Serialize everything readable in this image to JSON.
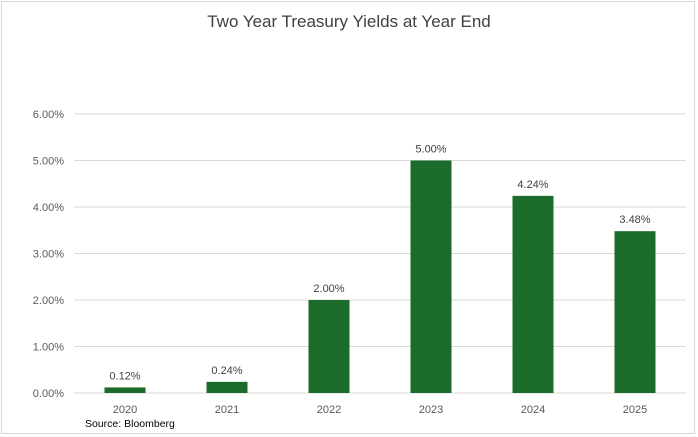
{
  "chart_data": {
    "type": "bar",
    "title": "Two Year Treasury Yields at Year End",
    "categories": [
      "2020",
      "2021",
      "2022",
      "2023",
      "2024",
      "2025"
    ],
    "values": [
      0.12,
      0.24,
      2.0,
      5.0,
      4.24,
      3.48
    ],
    "value_labels": [
      "0.12%",
      "0.24%",
      "2.00%",
      "5.00%",
      "4.24%",
      "3.48%"
    ],
    "ylim": [
      0,
      6
    ],
    "yticks": [
      0,
      1,
      2,
      3,
      4,
      5,
      6
    ],
    "ytick_labels": [
      "0.00%",
      "1.00%",
      "2.00%",
      "3.00%",
      "4.00%",
      "5.00%",
      "6.00%"
    ],
    "xlabel": "",
    "ylabel": "",
    "grid": true,
    "legend": "none",
    "bar_color": "#1b6b2a",
    "source": "Source: Bloomberg"
  }
}
